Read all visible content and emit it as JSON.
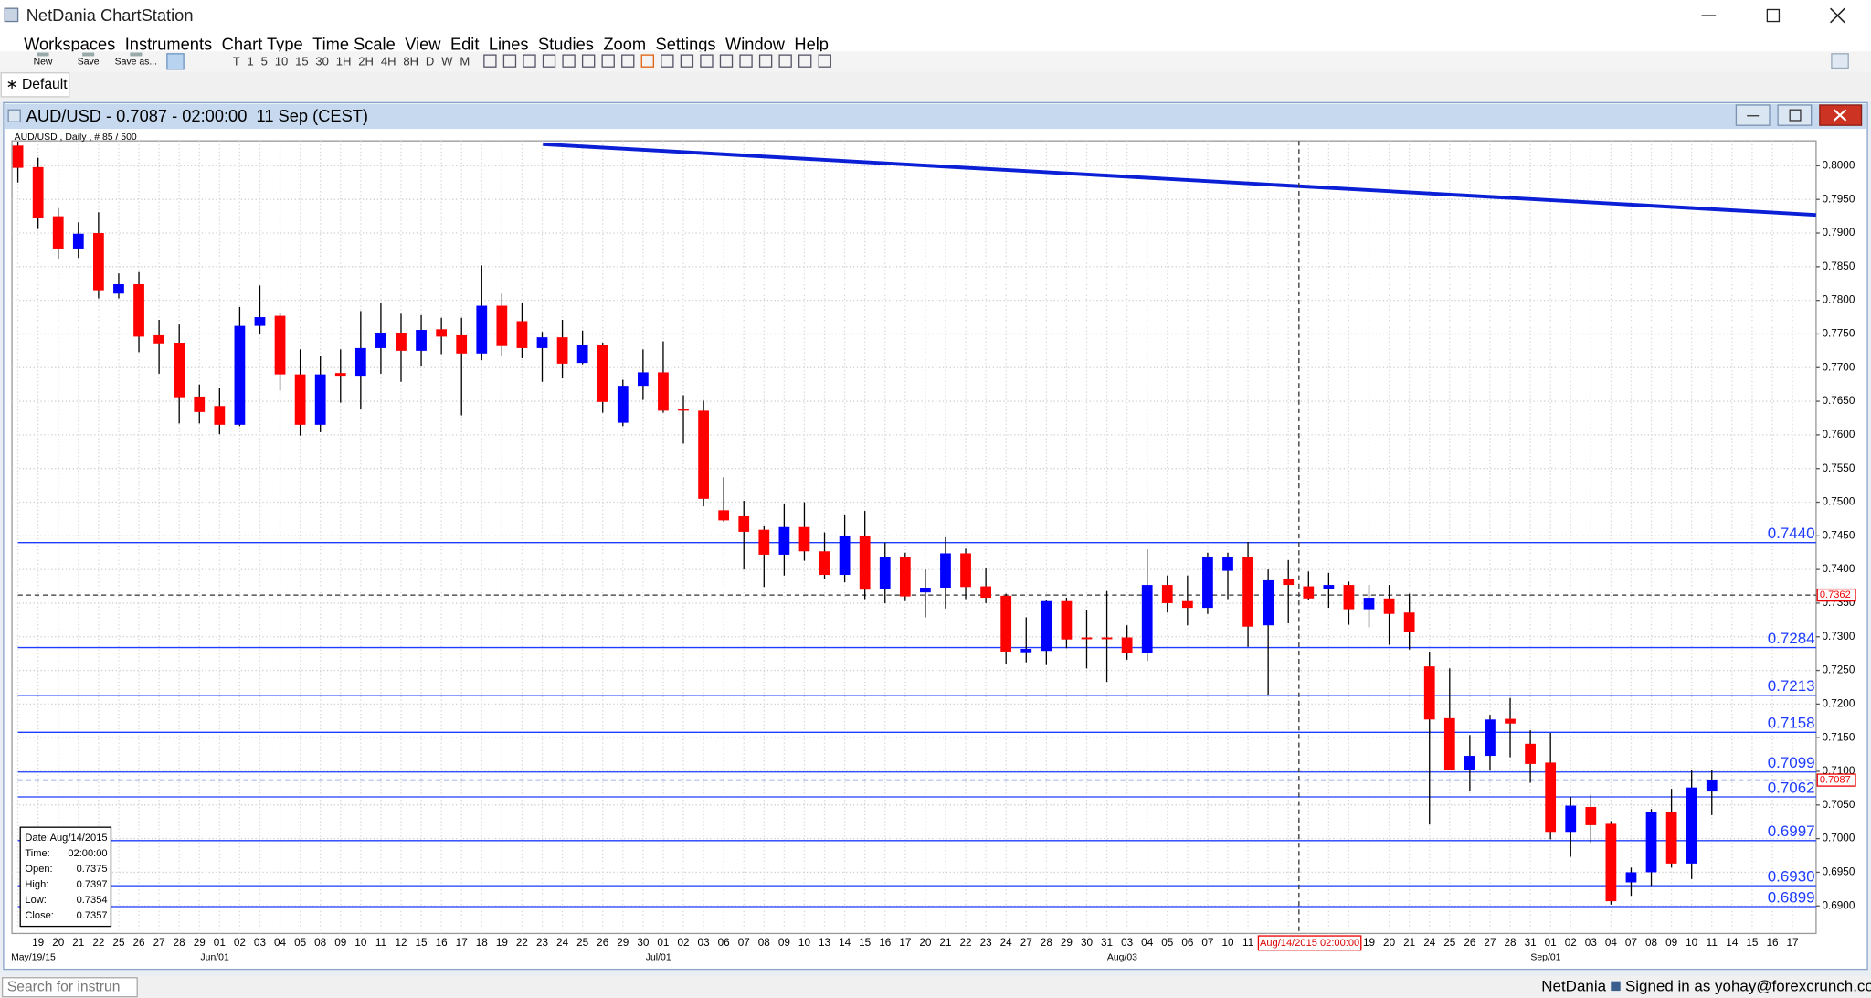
{
  "app": {
    "title": "NetDania ChartStation",
    "menu": [
      "Workspaces",
      "Instruments",
      "Chart Type",
      "Time Scale",
      "View",
      "Edit",
      "Lines",
      "Studies",
      "Zoom",
      "Settings",
      "Window",
      "Help"
    ],
    "toolbar": [
      "New",
      "Save",
      "Save as..."
    ],
    "timeframes": [
      "T",
      "1",
      "5",
      "10",
      "15",
      "30",
      "1H",
      "2H",
      "4H",
      "8H",
      "D",
      "W",
      "M"
    ],
    "tab": "∗ Default"
  },
  "chart_window": {
    "title": "AUD/USD - 0.7087 - 02:00:00  11 Sep (CEST)",
    "info": "AUD/USD , Daily , # 85 / 500"
  },
  "status": {
    "search_placeholder": "Search for instrun",
    "brand": "NetDania",
    "signed_in": "Signed in as yohay@forexcrunch.com"
  },
  "chart_data": {
    "type": "candlestick",
    "categories": [
      null,
      "19",
      "20",
      "21",
      "22",
      "25",
      "26",
      "27",
      "28",
      "29",
      "01",
      "02",
      "03",
      "04",
      "05",
      "08",
      "09",
      "10",
      "11",
      "12",
      "15",
      "16",
      "17",
      "18",
      "19",
      "22",
      "23",
      "24",
      "25",
      "26",
      "29",
      "30",
      "01",
      "02",
      "03",
      "06",
      "07",
      "08",
      "09",
      "10",
      "13",
      "14",
      "15",
      "16",
      "17",
      "20",
      "21",
      "22",
      "23",
      "24",
      "27",
      "28",
      "29",
      "30",
      "31",
      "03",
      "04",
      "05",
      "06",
      "07",
      "10",
      "11",
      null,
      null,
      null,
      null,
      null,
      "19",
      "20",
      "21",
      "24",
      "25",
      "26",
      "27",
      "28",
      "31",
      "01",
      "02",
      "03",
      "04",
      "07",
      "08",
      "09",
      "10",
      "11",
      "14",
      "15",
      "16",
      "17"
    ],
    "category_months": [
      null,
      "May/19/15",
      null,
      null,
      null,
      null,
      null,
      null,
      null,
      null,
      "Jun/01",
      null,
      null,
      null,
      null,
      null,
      null,
      null,
      null,
      null,
      null,
      null,
      null,
      null,
      null,
      null,
      null,
      null,
      null,
      null,
      null,
      null,
      "Jul/01",
      null,
      null,
      null,
      null,
      null,
      null,
      null,
      null,
      null,
      null,
      null,
      null,
      null,
      null,
      null,
      null,
      null,
      null,
      null,
      null,
      null,
      null,
      "Aug/03",
      null,
      null,
      null,
      null,
      null,
      null,
      null,
      null,
      null,
      null,
      null,
      null,
      null,
      null,
      null,
      null,
      null,
      null,
      null,
      null,
      "Sep/01",
      null,
      null,
      null,
      null,
      null,
      null,
      null,
      null,
      null,
      null,
      null,
      null
    ],
    "open": [
      0.803,
      0.7998,
      0.7925,
      0.7877,
      0.79,
      0.781,
      0.7824,
      0.7748,
      0.7737,
      0.7657,
      0.7643,
      0.7615,
      0.7762,
      0.7777,
      0.769,
      0.7615,
      0.7692,
      0.7688,
      0.7729,
      0.7752,
      0.7725,
      0.7757,
      0.7748,
      0.7721,
      0.7792,
      0.7769,
      0.7729,
      0.7745,
      0.7707,
      0.7734,
      0.7618,
      0.7673,
      0.7693,
      0.7639,
      0.7636,
      0.7488,
      0.7479,
      0.7459,
      0.7422,
      0.7463,
      0.7427,
      0.7392,
      0.745,
      0.7371,
      0.7418,
      0.7366,
      0.7373,
      0.7424,
      0.7375,
      0.7361,
      0.7277,
      0.7279,
      0.7353,
      0.7299,
      0.7299,
      0.7299,
      0.7276,
      0.7377,
      0.7353,
      0.7343,
      0.7398,
      0.7418,
      0.7317,
      0.7386,
      0.7375,
      0.7371,
      0.7377,
      0.7341,
      0.7357,
      0.7336,
      0.7256,
      0.7179,
      0.7102,
      0.7123,
      0.7178,
      0.7141,
      0.7113,
      0.701,
      0.7047,
      0.7022,
      0.6935,
      0.695,
      0.7039,
      0.6963,
      0.707,
      null,
      null,
      null,
      null
    ],
    "high": [
      0.8036,
      0.8012,
      0.7937,
      0.7916,
      0.7931,
      0.784,
      0.7842,
      0.7771,
      0.7764,
      0.7675,
      0.767,
      0.779,
      0.7822,
      0.7782,
      0.7727,
      0.7718,
      0.7727,
      0.7784,
      0.7796,
      0.778,
      0.7778,
      0.7774,
      0.7774,
      0.7852,
      0.781,
      0.7796,
      0.7753,
      0.7771,
      0.7755,
      0.7737,
      0.7682,
      0.7727,
      0.7739,
      0.7659,
      0.7651,
      0.7537,
      0.7502,
      0.7465,
      0.7498,
      0.75,
      0.7455,
      0.7481,
      0.7487,
      0.744,
      0.7425,
      0.74,
      0.7448,
      0.7431,
      0.7402,
      0.7364,
      0.7329,
      0.7355,
      0.7358,
      0.734,
      0.7368,
      0.7317,
      0.743,
      0.7391,
      0.7391,
      0.7425,
      0.7425,
      0.7441,
      0.74,
      0.7414,
      0.7397,
      0.7395,
      0.7382,
      0.7377,
      0.7377,
      0.7364,
      0.7278,
      0.7253,
      0.7154,
      0.7184,
      0.7209,
      0.7161,
      0.7157,
      0.7062,
      0.7065,
      0.7026,
      0.6957,
      0.7044,
      0.7074,
      0.7102,
      0.7102,
      null,
      null,
      null,
      null
    ],
    "low": [
      0.7975,
      0.7906,
      0.7862,
      0.7863,
      0.7803,
      0.7803,
      0.7723,
      0.7691,
      0.7617,
      0.7617,
      0.7601,
      0.7613,
      0.775,
      0.7666,
      0.7599,
      0.7604,
      0.7648,
      0.7638,
      0.7691,
      0.7679,
      0.7703,
      0.772,
      0.7629,
      0.7711,
      0.7718,
      0.7714,
      0.7679,
      0.7684,
      0.7705,
      0.7633,
      0.7613,
      0.7652,
      0.7633,
      0.7587,
      0.7494,
      0.7471,
      0.74,
      0.7374,
      0.7391,
      0.7413,
      0.7386,
      0.7381,
      0.7356,
      0.735,
      0.7353,
      0.7329,
      0.7342,
      0.7356,
      0.735,
      0.726,
      0.7262,
      0.7258,
      0.7283,
      0.7253,
      0.7233,
      0.7266,
      0.7264,
      0.7336,
      0.7317,
      0.7334,
      0.7356,
      0.7285,
      0.7214,
      0.732,
      0.7354,
      0.7343,
      0.7318,
      0.7314,
      0.7288,
      0.7281,
      0.7021,
      0.7102,
      0.707,
      0.7101,
      0.7121,
      0.7083,
      0.6999,
      0.6973,
      0.6994,
      0.6902,
      0.6915,
      0.693,
      0.6957,
      0.694,
      0.7035,
      null,
      null,
      null,
      null
    ],
    "close": [
      0.7997,
      0.7922,
      0.7877,
      0.7899,
      0.7815,
      0.7824,
      0.7746,
      0.7736,
      0.7656,
      0.7634,
      0.7615,
      0.7762,
      0.7775,
      0.769,
      0.7615,
      0.769,
      0.7688,
      0.7729,
      0.7752,
      0.7725,
      0.7756,
      0.7746,
      0.7721,
      0.7792,
      0.7732,
      0.7729,
      0.7745,
      0.7706,
      0.7734,
      0.7649,
      0.7673,
      0.7693,
      0.7636,
      0.7636,
      0.7505,
      0.7473,
      0.7456,
      0.7422,
      0.7463,
      0.7427,
      0.7392,
      0.745,
      0.737,
      0.7418,
      0.736,
      0.7373,
      0.7424,
      0.7374,
      0.7358,
      0.7278,
      0.7282,
      0.7353,
      0.7296,
      0.7297,
      0.7297,
      0.7276,
      0.7377,
      0.735,
      0.7343,
      0.7418,
      0.7418,
      0.7315,
      0.7384,
      0.7377,
      0.7357,
      0.7377,
      0.7341,
      0.7358,
      0.7334,
      0.7307,
      0.7177,
      0.7102,
      0.7123,
      0.7177,
      0.7171,
      0.7111,
      0.701,
      0.7049,
      0.702,
      0.6907,
      0.695,
      0.7039,
      0.6963,
      0.7076,
      0.7087,
      null,
      null,
      null,
      null
    ],
    "up_color": "#0000ff",
    "down_color": "#ff0000",
    "level_color": "#1e3cff",
    "trendline_color": "#0a1fd6",
    "ylim": [
      0.6859,
      0.8037
    ],
    "yticks": [
      {
        "value": 0.8,
        "label": "0.8000"
      },
      {
        "value": 0.795,
        "label": "0.7950"
      },
      {
        "value": 0.79,
        "label": "0.7900"
      },
      {
        "value": 0.785,
        "label": "0.7850"
      },
      {
        "value": 0.78,
        "label": "0.7800"
      },
      {
        "value": 0.775,
        "label": "0.7750"
      },
      {
        "value": 0.77,
        "label": "0.7700"
      },
      {
        "value": 0.765,
        "label": "0.7650"
      },
      {
        "value": 0.76,
        "label": "0.7600"
      },
      {
        "value": 0.755,
        "label": "0.7550"
      },
      {
        "value": 0.75,
        "label": "0.7500"
      },
      {
        "value": 0.745,
        "label": "0.7450"
      },
      {
        "value": 0.74,
        "label": "0.7400"
      },
      {
        "value": 0.735,
        "label": "0.7350"
      },
      {
        "value": 0.73,
        "label": "0.7300"
      },
      {
        "value": 0.725,
        "label": "0.7250"
      },
      {
        "value": 0.72,
        "label": "0.7200"
      },
      {
        "value": 0.715,
        "label": "0.7150"
      },
      {
        "value": 0.71,
        "label": "0.7100"
      },
      {
        "value": 0.705,
        "label": "0.7050"
      },
      {
        "value": 0.7,
        "label": "0.7000"
      },
      {
        "value": 0.695,
        "label": "0.6950"
      },
      {
        "value": 0.69,
        "label": "0.6900"
      }
    ],
    "grid": true,
    "levels": [
      {
        "value": 0.744,
        "label": "0.7440"
      },
      {
        "value": 0.7284,
        "label": "0.7284"
      },
      {
        "value": 0.7213,
        "label": "0.7213"
      },
      {
        "value": 0.7158,
        "label": "0.7158"
      },
      {
        "value": 0.7099,
        "label": "0.7099"
      },
      {
        "value": 0.7062,
        "label": "0.7062"
      },
      {
        "value": 0.6997,
        "label": "0.6997"
      },
      {
        "value": 0.693,
        "label": "0.6930"
      },
      {
        "value": 0.6899,
        "label": "0.6899"
      }
    ],
    "last_price": 0.7087,
    "crosshair": {
      "label": "Aug/14/2015 02:00:00",
      "y": 0.7362
    },
    "trendline": {
      "start": 0.8032,
      "end": 0.7927
    },
    "tooltip": {
      "rows": [
        [
          "Date:",
          "Aug/14/2015"
        ],
        [
          "Time:",
          "02:00:00"
        ],
        [
          "Open:",
          0.7375
        ],
        [
          "High:",
          0.7397
        ],
        [
          "Low:",
          0.7354
        ],
        [
          "Close:",
          0.7357
        ]
      ]
    }
  }
}
